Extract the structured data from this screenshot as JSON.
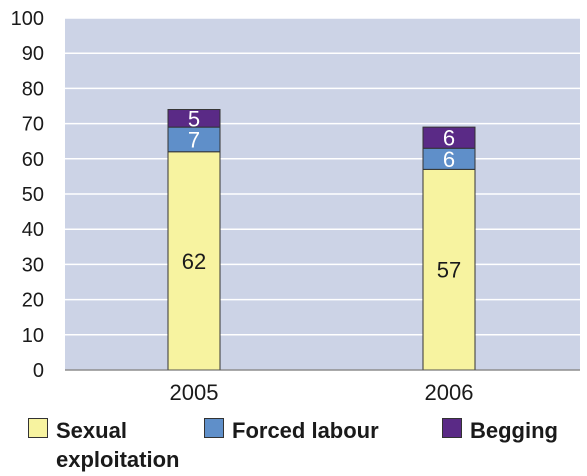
{
  "chart_data": {
    "type": "bar",
    "stacked": true,
    "categories": [
      "2005",
      "2006"
    ],
    "series": [
      {
        "name": "Sexual exploitation",
        "values": [
          62,
          57
        ],
        "color": "#f7f3a0"
      },
      {
        "name": "Forced labour",
        "values": [
          7,
          6
        ],
        "color": "#5f8fc9"
      },
      {
        "name": "Begging",
        "values": [
          5,
          6
        ],
        "color": "#5a2a86"
      }
    ],
    "ylim": [
      0,
      100
    ],
    "yticks": [
      "0",
      "10",
      "20",
      "30",
      "40",
      "50",
      "60",
      "70",
      "80",
      "90",
      "100"
    ],
    "grid": true,
    "legend_position": "bottom",
    "plot_background": "#ccd3e6",
    "grid_color": "#ffffff"
  },
  "legend": [
    {
      "line1": "Sexual",
      "line2": "exploitation"
    },
    {
      "line1": "Forced labour",
      "line2": ""
    },
    {
      "line1": "Begging",
      "line2": ""
    }
  ]
}
